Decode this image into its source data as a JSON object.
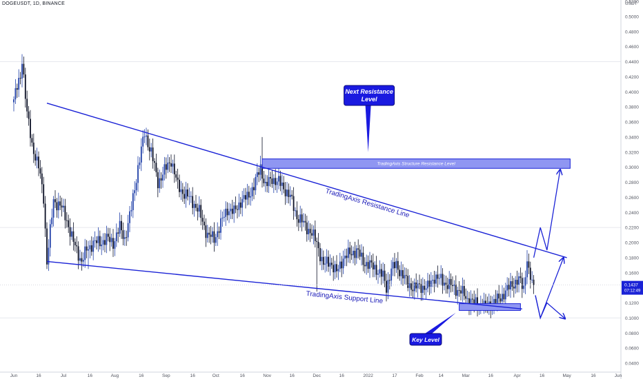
{
  "header": {
    "ticker": "DOGEUSDT, 1D, BINANCE",
    "currency": "USDT"
  },
  "price_tag": {
    "price": "0.1437",
    "countdown": "07:12:49"
  },
  "colors": {
    "up": "#1f3fa8",
    "down": "#0a0f24",
    "trendline": "#1a22d6",
    "zone_fill": "#8f96f2",
    "zone_stroke": "#1a22d6",
    "callout_fill": "#1a1ae0",
    "price_tag": "#1a22d6",
    "grid": "#e6e8ee"
  },
  "annotations": {
    "next_resistance_line1": "Next Resistance",
    "next_resistance_line2": "Level",
    "structure_resistance": "TradingAxis Structure Resistance Level",
    "resistance_line": "TradingAxis Resistance Line",
    "support_line": "TradingAxis Support Line",
    "key_level": "Key Level"
  },
  "chart_data": {
    "type": "candlestick",
    "title": "DOGEUSDT, 1D, BINANCE",
    "ylabel": "USDT",
    "ylim": [
      0.03,
      0.52
    ],
    "y_ticks": [
      "0.5200",
      "0.5000",
      "0.4800",
      "0.4600",
      "0.4400",
      "0.4200",
      "0.4000",
      "0.3800",
      "0.3600",
      "0.3400",
      "0.3200",
      "0.3000",
      "0.2800",
      "0.2600",
      "0.2400",
      "0.2200",
      "0.2000",
      "0.1800",
      "0.1600",
      "0.1200",
      "0.1000",
      "0.0800",
      "0.0600",
      "0.0400"
    ],
    "x_ticks": [
      "Jun",
      "16",
      "Jul",
      "16",
      "Aug",
      "16",
      "Sep",
      "16",
      "Oct",
      "16",
      "Nov",
      "16",
      "Dec",
      "16",
      "2022",
      "17",
      "Feb",
      "14",
      "Mar",
      "16",
      "Apr",
      "16",
      "May",
      "16",
      "Jun"
    ],
    "x_tick_positions": [
      0,
      15,
      30,
      46,
      61,
      77,
      92,
      108,
      122,
      138,
      153,
      168,
      183,
      198,
      214,
      230,
      245,
      258,
      273,
      288,
      304,
      319,
      334,
      350,
      365
    ],
    "last_price": 0.1437,
    "close_checkpoints": [
      [
        0,
        0.39
      ],
      [
        4,
        0.42
      ],
      [
        5,
        0.445
      ],
      [
        8,
        0.37
      ],
      [
        11,
        0.33
      ],
      [
        15,
        0.3
      ],
      [
        18,
        0.26
      ],
      [
        20,
        0.175
      ],
      [
        24,
        0.255
      ],
      [
        28,
        0.25
      ],
      [
        32,
        0.23
      ],
      [
        36,
        0.2
      ],
      [
        41,
        0.175
      ],
      [
        44,
        0.19
      ],
      [
        48,
        0.2
      ],
      [
        52,
        0.2
      ],
      [
        56,
        0.205
      ],
      [
        60,
        0.2
      ],
      [
        64,
        0.22
      ],
      [
        67,
        0.205
      ],
      [
        71,
        0.245
      ],
      [
        75,
        0.3
      ],
      [
        79,
        0.345
      ],
      [
        83,
        0.32
      ],
      [
        87,
        0.28
      ],
      [
        91,
        0.295
      ],
      [
        95,
        0.31
      ],
      [
        99,
        0.275
      ],
      [
        103,
        0.265
      ],
      [
        108,
        0.255
      ],
      [
        112,
        0.24
      ],
      [
        117,
        0.21
      ],
      [
        121,
        0.205
      ],
      [
        125,
        0.225
      ],
      [
        129,
        0.245
      ],
      [
        133,
        0.24
      ],
      [
        137,
        0.255
      ],
      [
        141,
        0.26
      ],
      [
        145,
        0.275
      ],
      [
        149,
        0.3
      ],
      [
        152,
        0.275
      ],
      [
        156,
        0.285
      ],
      [
        160,
        0.28
      ],
      [
        164,
        0.27
      ],
      [
        167,
        0.26
      ],
      [
        171,
        0.235
      ],
      [
        175,
        0.225
      ],
      [
        179,
        0.215
      ],
      [
        183,
        0.2
      ],
      [
        187,
        0.17
      ],
      [
        191,
        0.175
      ],
      [
        195,
        0.16
      ],
      [
        199,
        0.18
      ],
      [
        203,
        0.185
      ],
      [
        207,
        0.19
      ],
      [
        211,
        0.175
      ],
      [
        215,
        0.17
      ],
      [
        219,
        0.165
      ],
      [
        223,
        0.155
      ],
      [
        225,
        0.14
      ],
      [
        228,
        0.165
      ],
      [
        231,
        0.17
      ],
      [
        234,
        0.16
      ],
      [
        238,
        0.145
      ],
      [
        242,
        0.14
      ],
      [
        246,
        0.142
      ],
      [
        250,
        0.14
      ],
      [
        254,
        0.155
      ],
      [
        258,
        0.15
      ],
      [
        262,
        0.145
      ],
      [
        266,
        0.14
      ],
      [
        270,
        0.135
      ],
      [
        274,
        0.125
      ],
      [
        278,
        0.12
      ],
      [
        282,
        0.117
      ],
      [
        285,
        0.115
      ],
      [
        289,
        0.12
      ],
      [
        293,
        0.125
      ],
      [
        297,
        0.135
      ],
      [
        301,
        0.145
      ],
      [
        305,
        0.15
      ],
      [
        308,
        0.14
      ],
      [
        310,
        0.18
      ],
      [
        311,
        0.16
      ],
      [
        313,
        0.145
      ],
      [
        314,
        0.1437
      ]
    ],
    "wick_spikes": [
      {
        "day": 5,
        "high": 0.45
      },
      {
        "day": 20,
        "low": 0.165
      },
      {
        "day": 45,
        "low": 0.165
      },
      {
        "day": 150,
        "high": 0.34
      },
      {
        "day": 183,
        "low": 0.135
      },
      {
        "day": 226,
        "low": 0.125
      },
      {
        "day": 283,
        "low": 0.113
      },
      {
        "day": 310,
        "high": 0.19
      }
    ],
    "resistance_line": {
      "start": [
        20,
        0.385
      ],
      "end": [
        334,
        0.18
      ]
    },
    "support_line": {
      "start": [
        20,
        0.175
      ],
      "end": [
        307,
        0.112
      ]
    },
    "structure_resistance_zone": {
      "x": [
        150,
        336
      ],
      "y": [
        0.2985,
        0.311
      ]
    },
    "key_level_zone": {
      "x": [
        269,
        306
      ],
      "y": [
        0.11,
        0.119
      ]
    },
    "projections": [
      {
        "points": [
          [
            314,
            0.18
          ],
          [
            318,
            0.22
          ],
          [
            322,
            0.19
          ],
          [
            330,
            0.297
          ]
        ]
      },
      {
        "points": [
          [
            315,
            0.13
          ],
          [
            318,
            0.1
          ],
          [
            332,
            0.18
          ]
        ]
      },
      {
        "points": [
          [
            315,
            0.13
          ],
          [
            318,
            0.1
          ],
          [
            322,
            0.12
          ],
          [
            333,
            0.099
          ]
        ]
      }
    ],
    "callouts": [
      {
        "text": [
          "Next Resistance",
          "Level"
        ],
        "anchor": [
          214,
          0.32
        ]
      },
      {
        "text": [
          "Key Level"
        ],
        "anchor": [
          267,
          0.107
        ]
      }
    ]
  }
}
